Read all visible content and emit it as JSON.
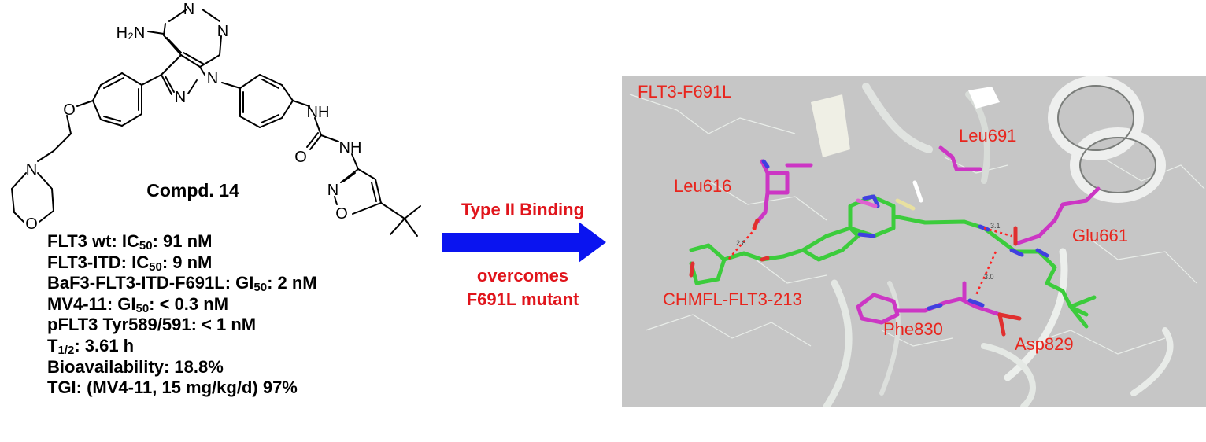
{
  "molecule": {
    "atoms": {
      "n_top": "N",
      "n_right": "N",
      "nh2": "H₂N",
      "n_pyrazole_1": "N",
      "n_pyrazole_2": "N",
      "o_ether": "O",
      "n_morpholine": "N",
      "o_morpholine": "O",
      "nh_1": "NH",
      "nh_2": "NH",
      "o_carbonyl": "O",
      "n_isoxazole": "N",
      "o_isoxazole": "O"
    },
    "compound_label": "Compd. 14"
  },
  "properties": [
    {
      "pre": "FLT3 wt: IC",
      "sub": "50",
      "post": ": 91 nM"
    },
    {
      "pre": "FLT3-ITD: IC",
      "sub": "50",
      "post": ": 9 nM"
    },
    {
      "pre": "BaF3-FLT3-ITD-F691L: GI",
      "sub": "50",
      "post": ": 2 nM"
    },
    {
      "pre": "MV4-11: GI",
      "sub": "50",
      "post": ": < 0.3 nM"
    },
    {
      "pre": "pFLT3 Tyr589/591: < 1 nM",
      "sub": "",
      "post": ""
    },
    {
      "pre": "T",
      "sub": "1/2",
      "post": ": 3.61 h"
    },
    {
      "pre": "Bioavailability: 18.8%",
      "sub": "",
      "post": ""
    },
    {
      "pre": "TGI: (MV4-11, 15 mg/kg/d) 97%",
      "sub": "",
      "post": ""
    }
  ],
  "arrow": {
    "label_top": "Type II Binding",
    "label_bottom_1": "overcomes",
    "label_bottom_2": "F691L mutant",
    "color": "#0a14f0"
  },
  "binding_view": {
    "residues": {
      "flt3": "FLT3-F691L",
      "leu691": "Leu691",
      "leu616": "Leu616",
      "glu661": "Glu661",
      "ligand": "CHMFL-FLT3-213",
      "phe830": "Phe830",
      "asp829": "Asp829"
    },
    "distances": {
      "d1": "2.8",
      "d2": "3.1",
      "d3": "3.0"
    },
    "colors": {
      "background": "#c6c6c6",
      "ligand_carbon": "#3ccc3c",
      "residue_carbon": "#cc36c4",
      "label": "#e8251d"
    }
  }
}
